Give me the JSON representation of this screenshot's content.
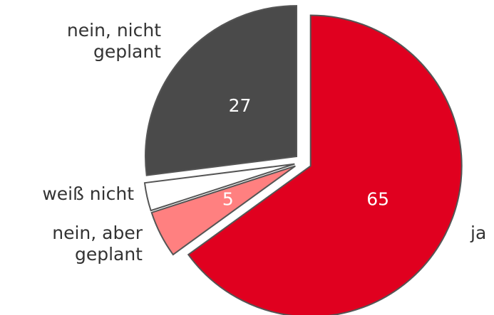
{
  "chart_data": {
    "type": "pie",
    "categories": [
      "ja",
      "nein, aber geplant",
      "weiß nicht",
      "nein, nicht geplant"
    ],
    "values": [
      65,
      5,
      3,
      27
    ],
    "colors": [
      "#e0001f",
      "#ff8080",
      "#ffffff",
      "#4a4a4a"
    ]
  }
}
